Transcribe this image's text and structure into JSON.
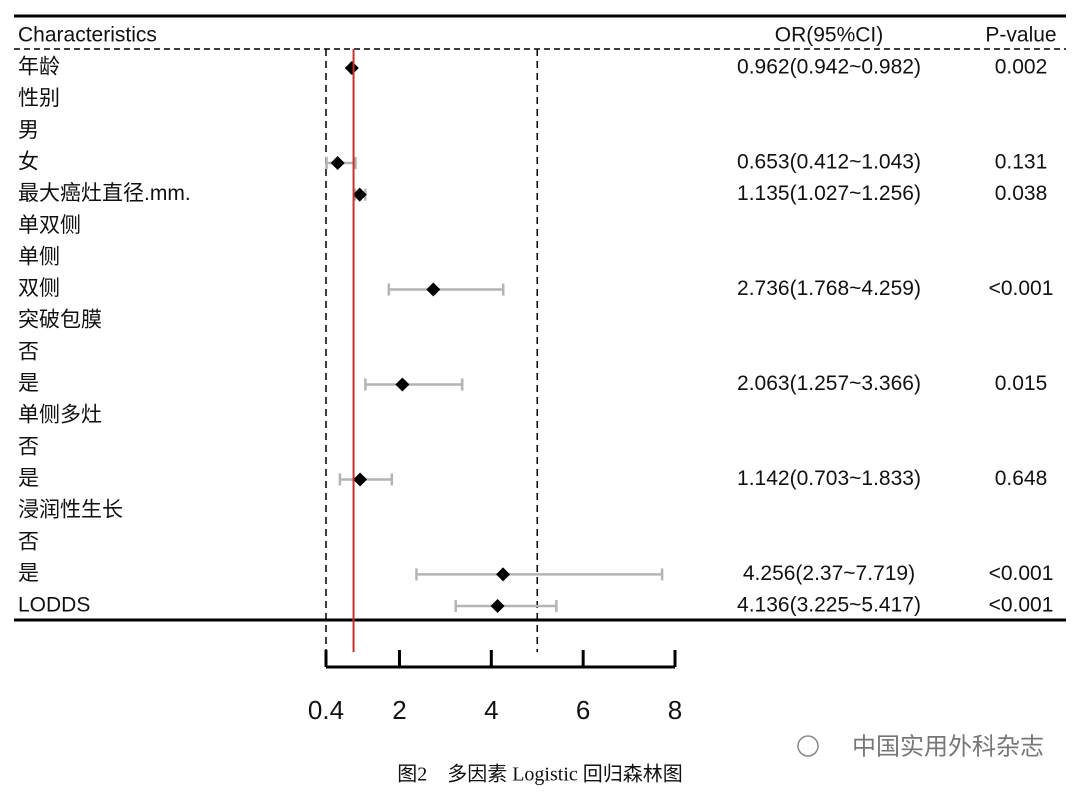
{
  "chart_data": {
    "type": "forest",
    "headers": [
      "Characteristics",
      "OR(95%CI)",
      "P-value"
    ],
    "categories": [
      "年龄",
      "性别",
      "男",
      "女",
      "最大癌灶直径.mm.",
      "单双侧",
      "单侧",
      "双侧",
      "突破包膜",
      "否",
      "是",
      "单侧多灶",
      "否",
      "是",
      "浸润性生长",
      "否",
      "是",
      "LODDS"
    ],
    "values": [
      0.962,
      null,
      null,
      0.653,
      1.135,
      null,
      null,
      2.736,
      null,
      null,
      2.063,
      null,
      null,
      1.142,
      null,
      null,
      4.256,
      4.136
    ],
    "lower": [
      0.942,
      null,
      null,
      0.412,
      1.027,
      null,
      null,
      1.768,
      null,
      null,
      1.257,
      null,
      null,
      0.703,
      null,
      null,
      2.37,
      3.225
    ],
    "upper": [
      0.982,
      null,
      null,
      1.043,
      1.256,
      null,
      null,
      4.259,
      null,
      null,
      3.366,
      null,
      null,
      1.833,
      null,
      null,
      7.719,
      5.417
    ],
    "value_labels": [
      "0.962(0.942~0.982)",
      null,
      null,
      "0.653(0.412~1.043)",
      "1.135(1.027~1.256)",
      null,
      null,
      "2.736(1.768~4.259)",
      null,
      null,
      "2.063(1.257~3.366)",
      null,
      null,
      "1.142(0.703~1.833)",
      null,
      null,
      "4.256(2.37~7.719)",
      "4.136(3.225~5.417)"
    ],
    "p_values": [
      "0.002",
      null,
      null,
      "0.131",
      "0.038",
      null,
      null,
      "<0.001",
      null,
      null,
      "0.015",
      null,
      null,
      "0.648",
      null,
      null,
      "<0.001",
      "<0.001"
    ],
    "xlim": [
      0.4,
      8
    ],
    "xticks": [
      0.4,
      2,
      4,
      6,
      8
    ],
    "reference_line": 1,
    "reference_color": "#c8302c",
    "dashed_lines": [
      0.4,
      5
    ],
    "marker_color": "#000000",
    "ci_color": "#b4b4b4",
    "caption": "图2　多因素 Logistic 回归森林图",
    "watermark": "中国实用外科杂志"
  }
}
